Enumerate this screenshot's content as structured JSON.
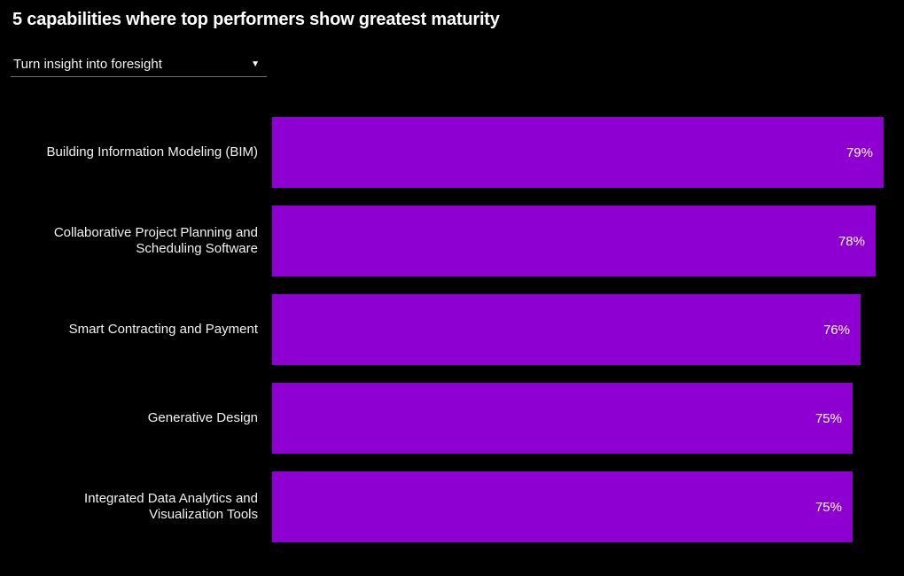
{
  "header": {
    "title": "5 capabilities where top performers show greatest maturity"
  },
  "filter_dropdown": {
    "selected_value": "Turn insight into foresight",
    "caret_icon": "▼"
  },
  "colors": {
    "background": "#000000",
    "bar": "#8E00D1",
    "label_text": "#f2f2f2",
    "value_text": "#ffffff",
    "dropdown_underline": "#6f6f6f"
  },
  "chart_data": {
    "type": "bar",
    "orientation": "horizontal",
    "title": "5 capabilities where top performers show greatest maturity",
    "categories": [
      "Building Information Modeling (BIM)",
      "Collaborative Project Planning and Scheduling Software",
      "Smart Contracting and Payment",
      "Generative Design",
      "Integrated Data Analytics and Visualization Tools"
    ],
    "values": [
      79,
      78,
      76,
      75,
      75
    ],
    "value_labels": [
      "79%",
      "78%",
      "76%",
      "75%",
      "75%"
    ],
    "unit": "%",
    "xlim": [
      0,
      100
    ],
    "grid": false,
    "legend": false,
    "value_label_position": "inside-end"
  }
}
